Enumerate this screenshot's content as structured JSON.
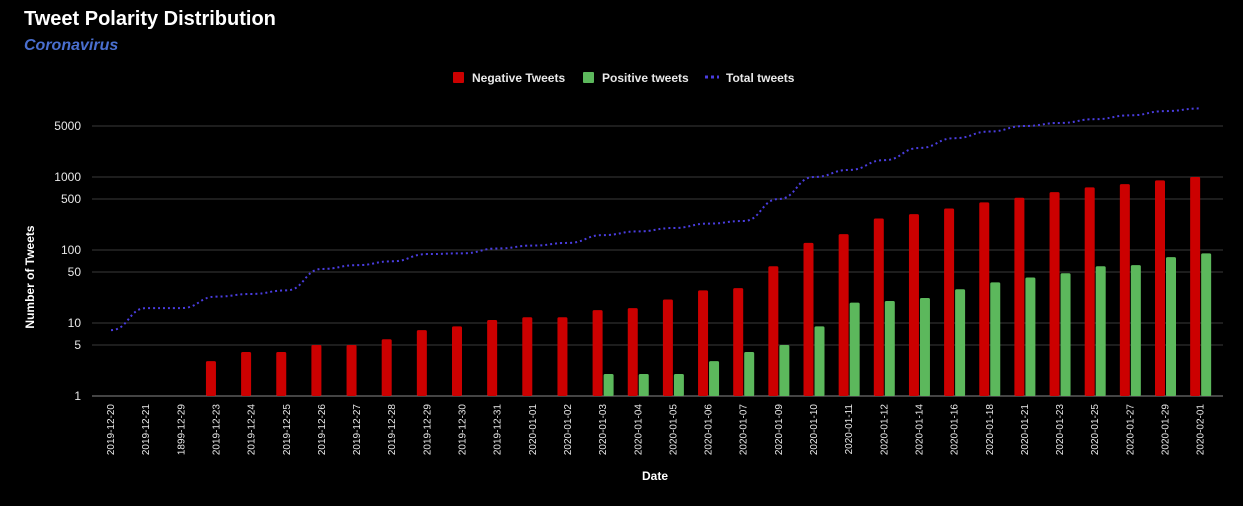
{
  "title": "Tweet Polarity Distribution",
  "subtitle": "Coronavirus",
  "colors": {
    "negative": "#cc0000",
    "positive": "#5cb85c",
    "total": "#4a3de0",
    "subtitle": "#4a6fd0"
  },
  "chart_data": {
    "type": "bar",
    "title": "Tweet Polarity Distribution",
    "subtitle": "Coronavirus",
    "xlabel": "Date",
    "ylabel": "Number of Tweets",
    "yscale": "log",
    "ylim": [
      1,
      10000
    ],
    "yticks": [
      1,
      5,
      10,
      50,
      100,
      500,
      1000,
      5000
    ],
    "grid": true,
    "legend_position": "top",
    "categories": [
      "2019-12-20",
      "2019-12-21",
      "1899-12-29",
      "2019-12-23",
      "2019-12-24",
      "2019-12-25",
      "2019-12-26",
      "2019-12-27",
      "2019-12-28",
      "2019-12-29",
      "2019-12-30",
      "2019-12-31",
      "2020-01-01",
      "2020-01-02",
      "2020-01-03",
      "2020-01-04",
      "2020-01-05",
      "2020-01-06",
      "2020-01-07",
      "2020-01-09",
      "2020-01-10",
      "2020-01-11",
      "2020-01-12",
      "2020-01-14",
      "2020-01-16",
      "2020-01-18",
      "2020-01-21",
      "2020-01-23",
      "2020-01-25",
      "2020-01-27",
      "2020-01-29",
      "2020-02-01"
    ],
    "series": [
      {
        "name": "Negative Tweets",
        "type": "bar",
        "values": [
          null,
          null,
          null,
          3,
          4,
          4,
          5,
          5,
          6,
          8,
          9,
          11,
          12,
          12,
          15,
          16,
          21,
          28,
          30,
          60,
          125,
          165,
          270,
          310,
          370,
          450,
          520,
          620,
          720,
          800,
          900,
          1000
        ]
      },
      {
        "name": "Positive tweets",
        "type": "bar",
        "values": [
          null,
          null,
          null,
          null,
          null,
          null,
          null,
          null,
          null,
          null,
          null,
          null,
          null,
          null,
          2,
          2,
          2,
          3,
          4,
          5,
          9,
          19,
          20,
          22,
          29,
          36,
          42,
          48,
          60,
          62,
          80,
          90
        ]
      },
      {
        "name": "Total tweets",
        "type": "line",
        "style": "dotted",
        "values": [
          8,
          16,
          16,
          23,
          25,
          28,
          55,
          62,
          70,
          88,
          90,
          105,
          115,
          125,
          160,
          180,
          200,
          230,
          250,
          500,
          1000,
          1250,
          1700,
          2500,
          3400,
          4200,
          5000,
          5500,
          6200,
          7000,
          8000,
          8700
        ]
      }
    ]
  }
}
